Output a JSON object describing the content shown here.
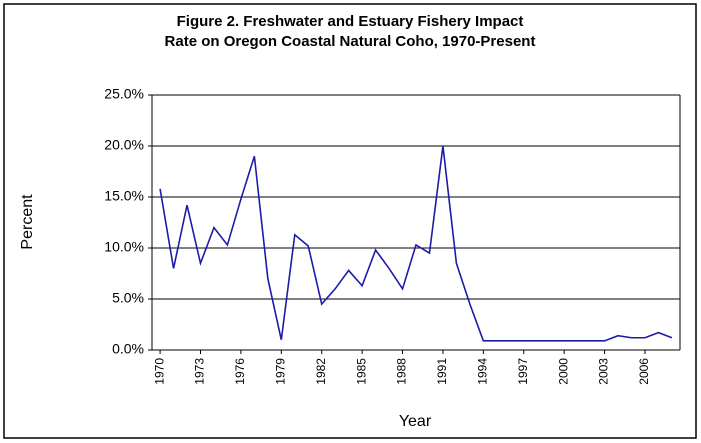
{
  "chart_data": {
    "type": "line",
    "title": [
      "Figure 2.  Freshwater and Estuary Fishery Impact",
      "Rate on Oregon Coastal Natural Coho, 1970-Present"
    ],
    "x_label": "Year",
    "y_label": "Percent",
    "x": [
      1970,
      1971,
      1972,
      1973,
      1974,
      1975,
      1976,
      1977,
      1978,
      1979,
      1980,
      1981,
      1982,
      1983,
      1984,
      1985,
      1986,
      1987,
      1988,
      1989,
      1990,
      1991,
      1992,
      1993,
      1994,
      1995,
      1996,
      1997,
      1998,
      1999,
      2000,
      2001,
      2002,
      2003,
      2004,
      2005,
      2006,
      2007,
      2008
    ],
    "series": [
      {
        "color": "#1c1ca8",
        "values": [
          15.8,
          8.0,
          14.2,
          8.5,
          12.0,
          10.3,
          14.8,
          19.0,
          7.0,
          1.0,
          11.3,
          10.2,
          4.5,
          6.0,
          7.8,
          6.3,
          9.8,
          8.0,
          6.0,
          10.3,
          9.5,
          20.0,
          8.5,
          4.5,
          0.9,
          0.9,
          0.9,
          0.9,
          0.9,
          0.9,
          0.9,
          0.9,
          0.9,
          0.9,
          1.4,
          1.2,
          1.2,
          1.7,
          1.2
        ]
      }
    ],
    "xlim": [
      1969.4,
      2008.6
    ],
    "xticks": [
      1970,
      1973,
      1976,
      1979,
      1982,
      1985,
      1988,
      1991,
      1994,
      1997,
      2000,
      2003,
      2006
    ],
    "ylim": [
      0,
      25
    ],
    "yticks": [
      {
        "value": 0,
        "label": "0.0%"
      },
      {
        "value": 5,
        "label": "5.0%"
      },
      {
        "value": 10,
        "label": "10.0%"
      },
      {
        "value": 15,
        "label": "15.0%"
      },
      {
        "value": 20,
        "label": "20.0%"
      },
      {
        "value": 25,
        "label": "25.0%"
      }
    ],
    "grid": true
  }
}
